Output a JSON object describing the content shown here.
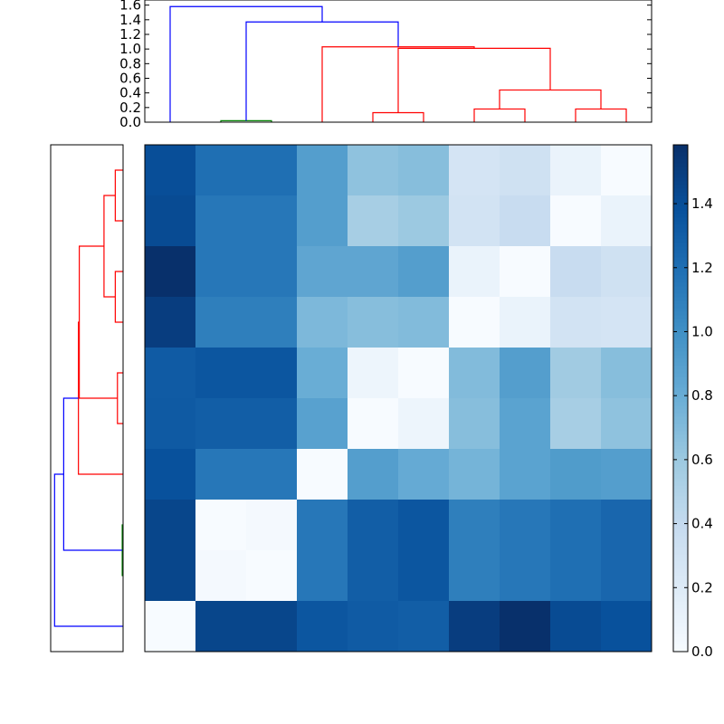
{
  "chart_data": {
    "type": "heatmap",
    "title": "",
    "description_free": true,
    "vmin": 0.0,
    "vmax": 1.58,
    "colormap": [
      "#f7fbff",
      "#deebf7",
      "#c6dbef",
      "#9ecae1",
      "#6baed6",
      "#4292c6",
      "#2171b5",
      "#08519c",
      "#08306b"
    ],
    "column_leaf_order": [
      0,
      1,
      2,
      3,
      4,
      5,
      6,
      7,
      8,
      9
    ],
    "row_leaf_order": [
      9,
      8,
      7,
      6,
      5,
      4,
      3,
      2,
      1,
      0
    ],
    "matrix_rows_top_to_bottom": [
      [
        1.4,
        1.2,
        1.2,
        0.9,
        0.65,
        0.68,
        0.28,
        0.32,
        0.1,
        0.0
      ],
      [
        1.42,
        1.15,
        1.15,
        0.9,
        0.55,
        0.6,
        0.3,
        0.38,
        0.0,
        0.1
      ],
      [
        1.58,
        1.15,
        1.15,
        0.85,
        0.85,
        0.9,
        0.1,
        0.0,
        0.38,
        0.32
      ],
      [
        1.5,
        1.1,
        1.1,
        0.72,
        0.68,
        0.7,
        0.0,
        0.1,
        0.3,
        0.28
      ],
      [
        1.32,
        1.35,
        1.35,
        0.8,
        0.08,
        0.0,
        0.7,
        0.9,
        0.58,
        0.68
      ],
      [
        1.33,
        1.3,
        1.3,
        0.88,
        0.0,
        0.08,
        0.68,
        0.87,
        0.55,
        0.65
      ],
      [
        1.38,
        1.15,
        1.15,
        0.0,
        0.9,
        0.82,
        0.75,
        0.87,
        0.92,
        0.9
      ],
      [
        1.45,
        0.0,
        0.02,
        1.15,
        1.3,
        1.35,
        1.1,
        1.15,
        1.2,
        1.25
      ],
      [
        1.45,
        0.02,
        0.0,
        1.15,
        1.3,
        1.35,
        1.1,
        1.15,
        1.2,
        1.25
      ],
      [
        0.0,
        1.45,
        1.45,
        1.35,
        1.32,
        1.3,
        1.5,
        1.58,
        1.42,
        1.38
      ]
    ],
    "dendrogram": {
      "height_range": [
        0,
        1.67
      ],
      "ticks": [
        "0.0",
        "0.2",
        "0.4",
        "0.6",
        "0.8",
        "1.0",
        "1.2",
        "1.4",
        "1.6"
      ],
      "links": [
        {
          "pos": [
            1,
            1,
            2,
            2
          ],
          "h": [
            0,
            0.02,
            0.02,
            0
          ],
          "color": "#008000"
        },
        {
          "pos": [
            4,
            4,
            5,
            5
          ],
          "h": [
            0,
            0.13,
            0.13,
            0
          ],
          "color": "#ff0000"
        },
        {
          "pos": [
            6,
            6,
            7,
            7
          ],
          "h": [
            0,
            0.18,
            0.18,
            0
          ],
          "color": "#ff0000"
        },
        {
          "pos": [
            8,
            8,
            9,
            9
          ],
          "h": [
            0,
            0.18,
            0.18,
            0
          ],
          "color": "#ff0000"
        },
        {
          "pos": [
            6.5,
            6.5,
            8.5,
            8.5
          ],
          "h": [
            0.18,
            0.44,
            0.44,
            0.18
          ],
          "color": "#ff0000"
        },
        {
          "pos": [
            4.5,
            4.5,
            7.5,
            7.5
          ],
          "h": [
            0.13,
            1.01,
            1.01,
            0.44
          ],
          "color": "#ff0000"
        },
        {
          "pos": [
            3,
            3,
            6,
            6
          ],
          "h": [
            0,
            1.03,
            1.03,
            1.01
          ],
          "color": "#ff0000"
        },
        {
          "pos": [
            1.5,
            1.5,
            4.5,
            4.5
          ],
          "h": [
            0.02,
            1.37,
            1.37,
            1.03
          ],
          "color": "#0000ff"
        },
        {
          "pos": [
            0,
            0,
            3,
            3
          ],
          "h": [
            0,
            1.58,
            1.58,
            1.37
          ],
          "color": "#0000ff"
        }
      ]
    },
    "colorbar": {
      "ticks": [
        "0.0",
        "0.2",
        "0.4",
        "0.6",
        "0.8",
        "1.0",
        "1.2",
        "1.4"
      ],
      "range": [
        0,
        1.584
      ]
    }
  }
}
